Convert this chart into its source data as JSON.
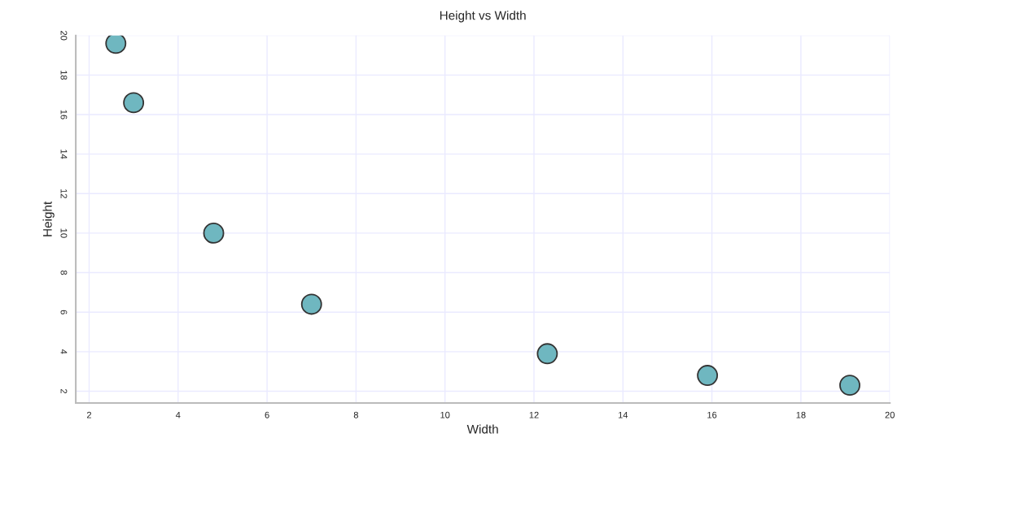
{
  "chart_data": {
    "type": "scatter",
    "title": "Height vs Width",
    "xlabel": "Width",
    "ylabel": "Height",
    "x": [
      2.6,
      3.0,
      4.8,
      7.0,
      12.3,
      15.9,
      19.1
    ],
    "series": [
      {
        "color": "#6fb7c0",
        "values": [
          19.6,
          16.6,
          10.0,
          6.4,
          3.9,
          2.8,
          2.3
        ]
      }
    ],
    "xlim": [
      1.7,
      20
    ],
    "ylim": [
      1.4,
      20
    ],
    "xticks": [
      2,
      4,
      6,
      8,
      10,
      12,
      14,
      16,
      18,
      20
    ],
    "yticks": [
      2,
      4,
      6,
      8,
      10,
      12,
      14,
      16,
      18,
      20
    ],
    "grid": true,
    "marker": "circle",
    "legend": false
  }
}
